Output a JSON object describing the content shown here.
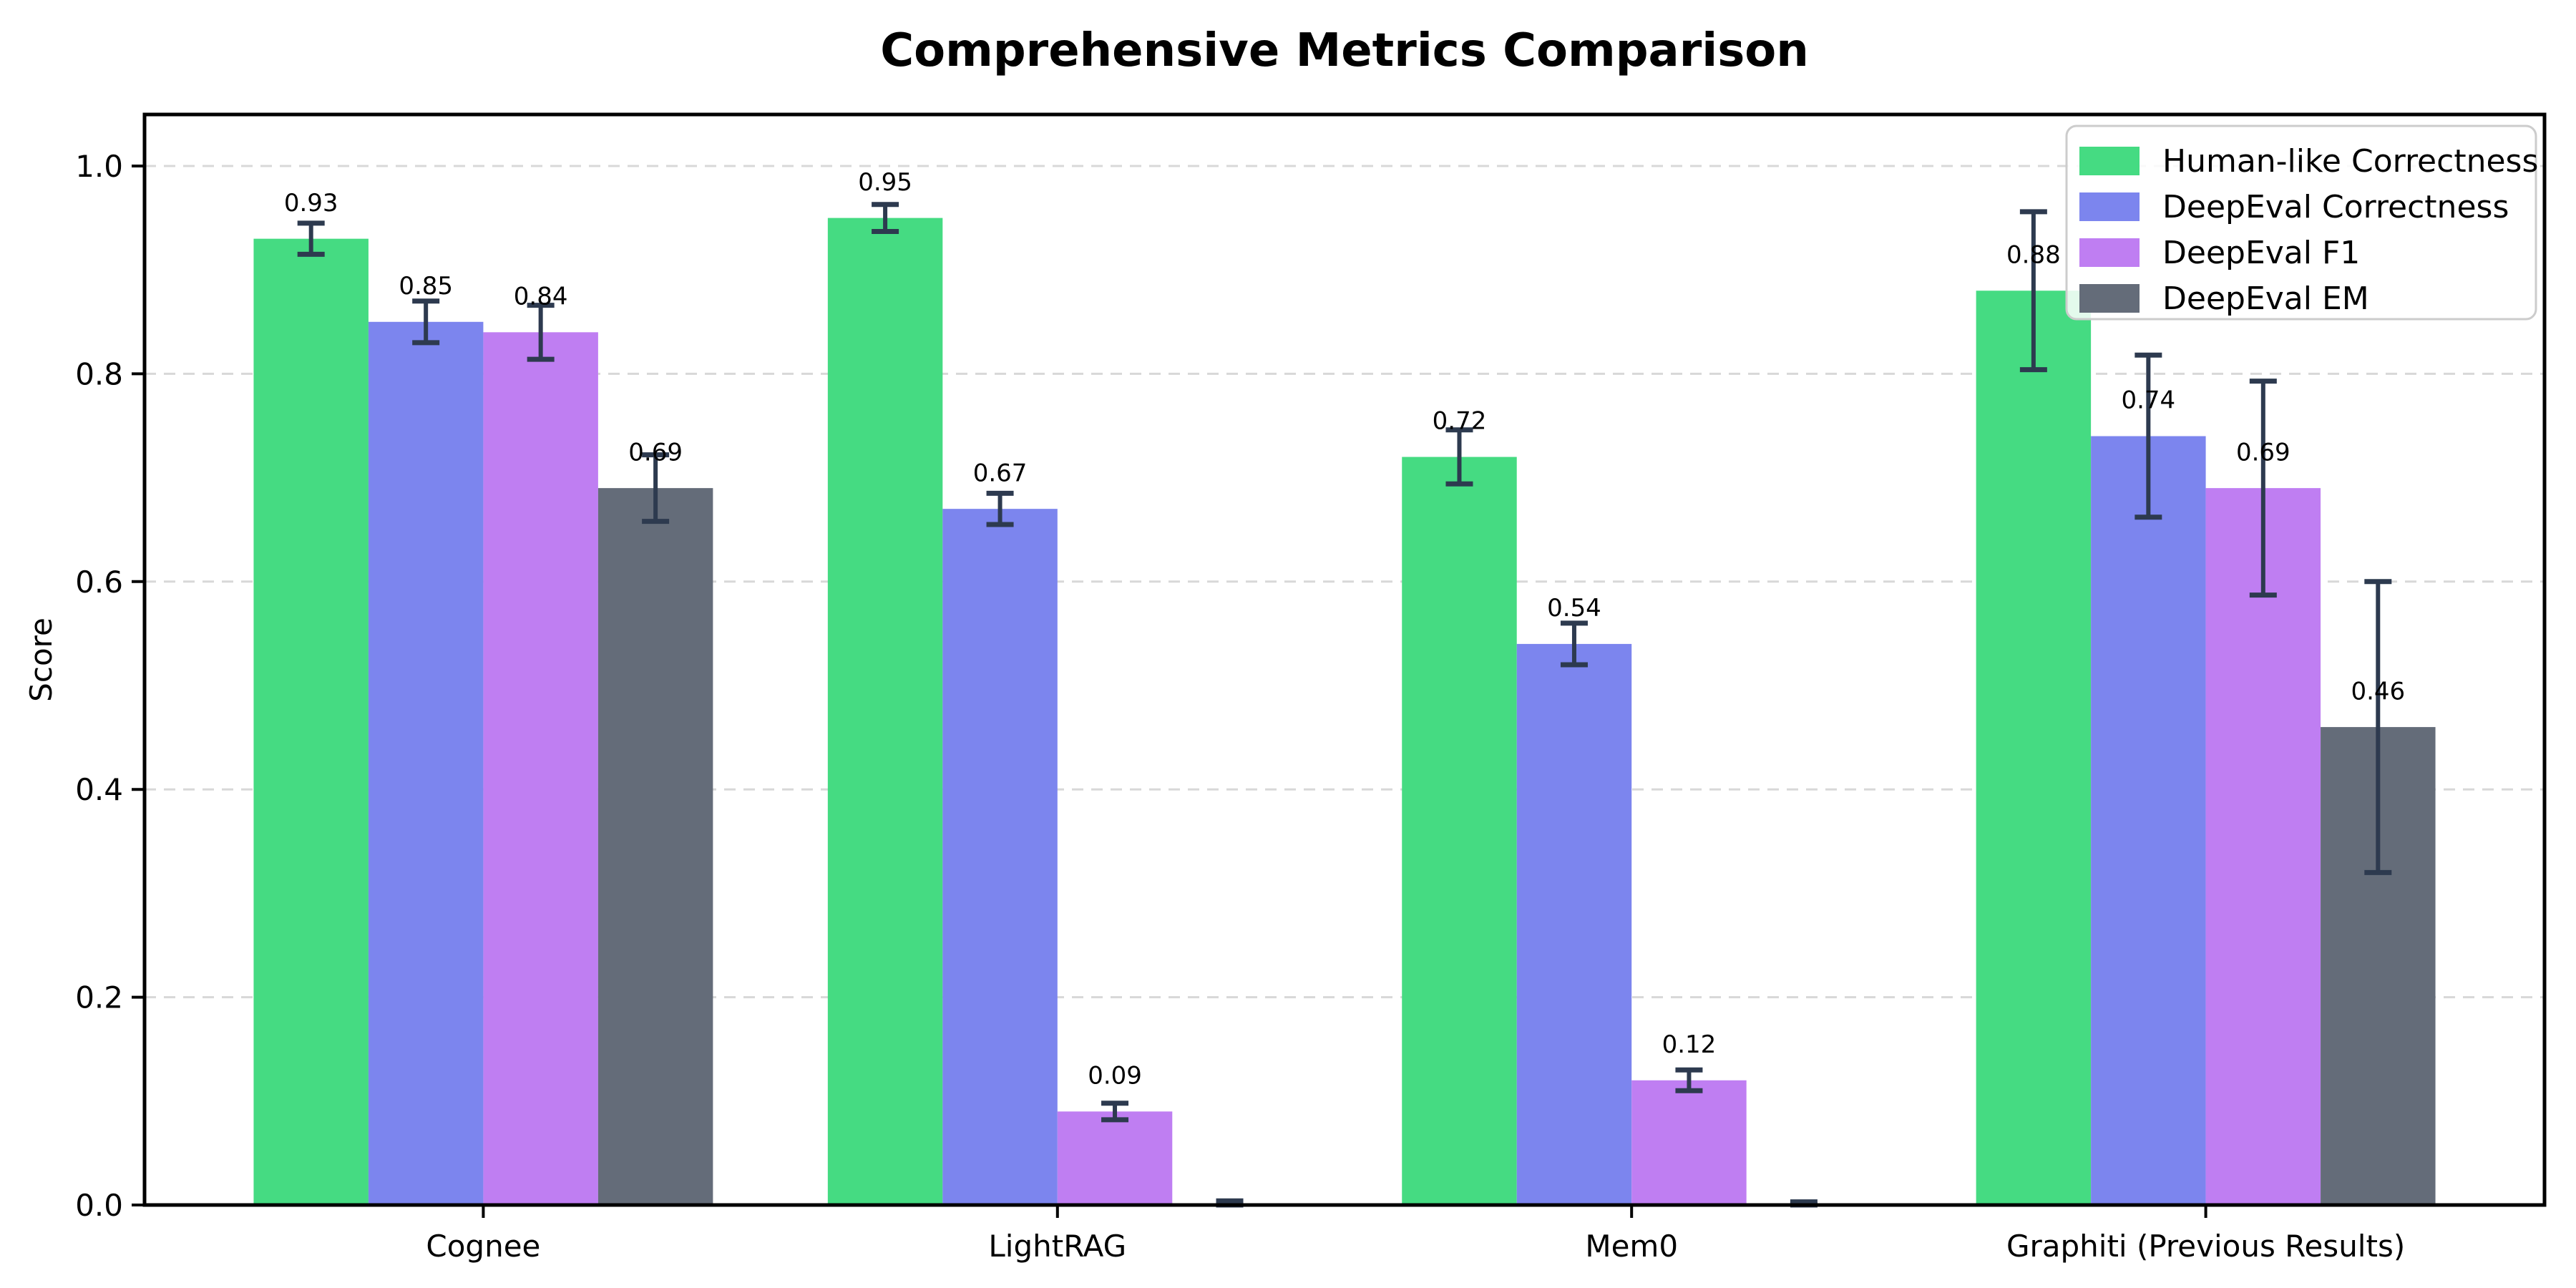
{
  "chart_data": {
    "type": "bar",
    "title": "Comprehensive Metrics Comparison",
    "ylabel": "Score",
    "xlabel": "",
    "categories": [
      "Cognee",
      "LightRAG",
      "Mem0",
      "Graphiti (Previous Results)"
    ],
    "yticks": [
      "0.0",
      "0.2",
      "0.4",
      "0.6",
      "0.8",
      "1.0"
    ],
    "ytick_values": [
      0.0,
      0.2,
      0.4,
      0.6,
      0.8,
      1.0
    ],
    "ylim": [
      0,
      1.05
    ],
    "grid": "horizontal-dashed",
    "legend_position": "upper right",
    "bar_width_units": 0.2,
    "error_color": "#2d3a4f",
    "grid_color": "#d8d8d8",
    "legend_border_color": "#cccccc",
    "series": [
      {
        "name": "Human-like Correctness",
        "color": "#45db82",
        "values": [
          0.93,
          0.95,
          0.72,
          0.88
        ],
        "errors": [
          0.015,
          0.013,
          0.026,
          0.076
        ],
        "labels": [
          "0.93",
          "0.95",
          "0.72",
          "0.88"
        ]
      },
      {
        "name": "DeepEval Correctness",
        "color": "#7c85ee",
        "values": [
          0.85,
          0.67,
          0.54,
          0.74
        ],
        "errors": [
          0.02,
          0.015,
          0.02,
          0.078
        ],
        "labels": [
          "0.85",
          "0.67",
          "0.54",
          "0.74"
        ]
      },
      {
        "name": "DeepEval F1",
        "color": "#bf7ef2",
        "values": [
          0.84,
          0.09,
          0.12,
          0.69
        ],
        "errors": [
          0.026,
          0.008,
          0.01,
          0.103
        ],
        "labels": [
          "0.84",
          "0.09",
          "0.12",
          "0.69"
        ]
      },
      {
        "name": "DeepEval EM",
        "color": "#646c79",
        "values": [
          0.69,
          0.0,
          0.0,
          0.46
        ],
        "errors": [
          0.032,
          0.004,
          0.003,
          0.14
        ],
        "labels": [
          "0.69",
          null,
          null,
          "0.46"
        ]
      }
    ]
  }
}
